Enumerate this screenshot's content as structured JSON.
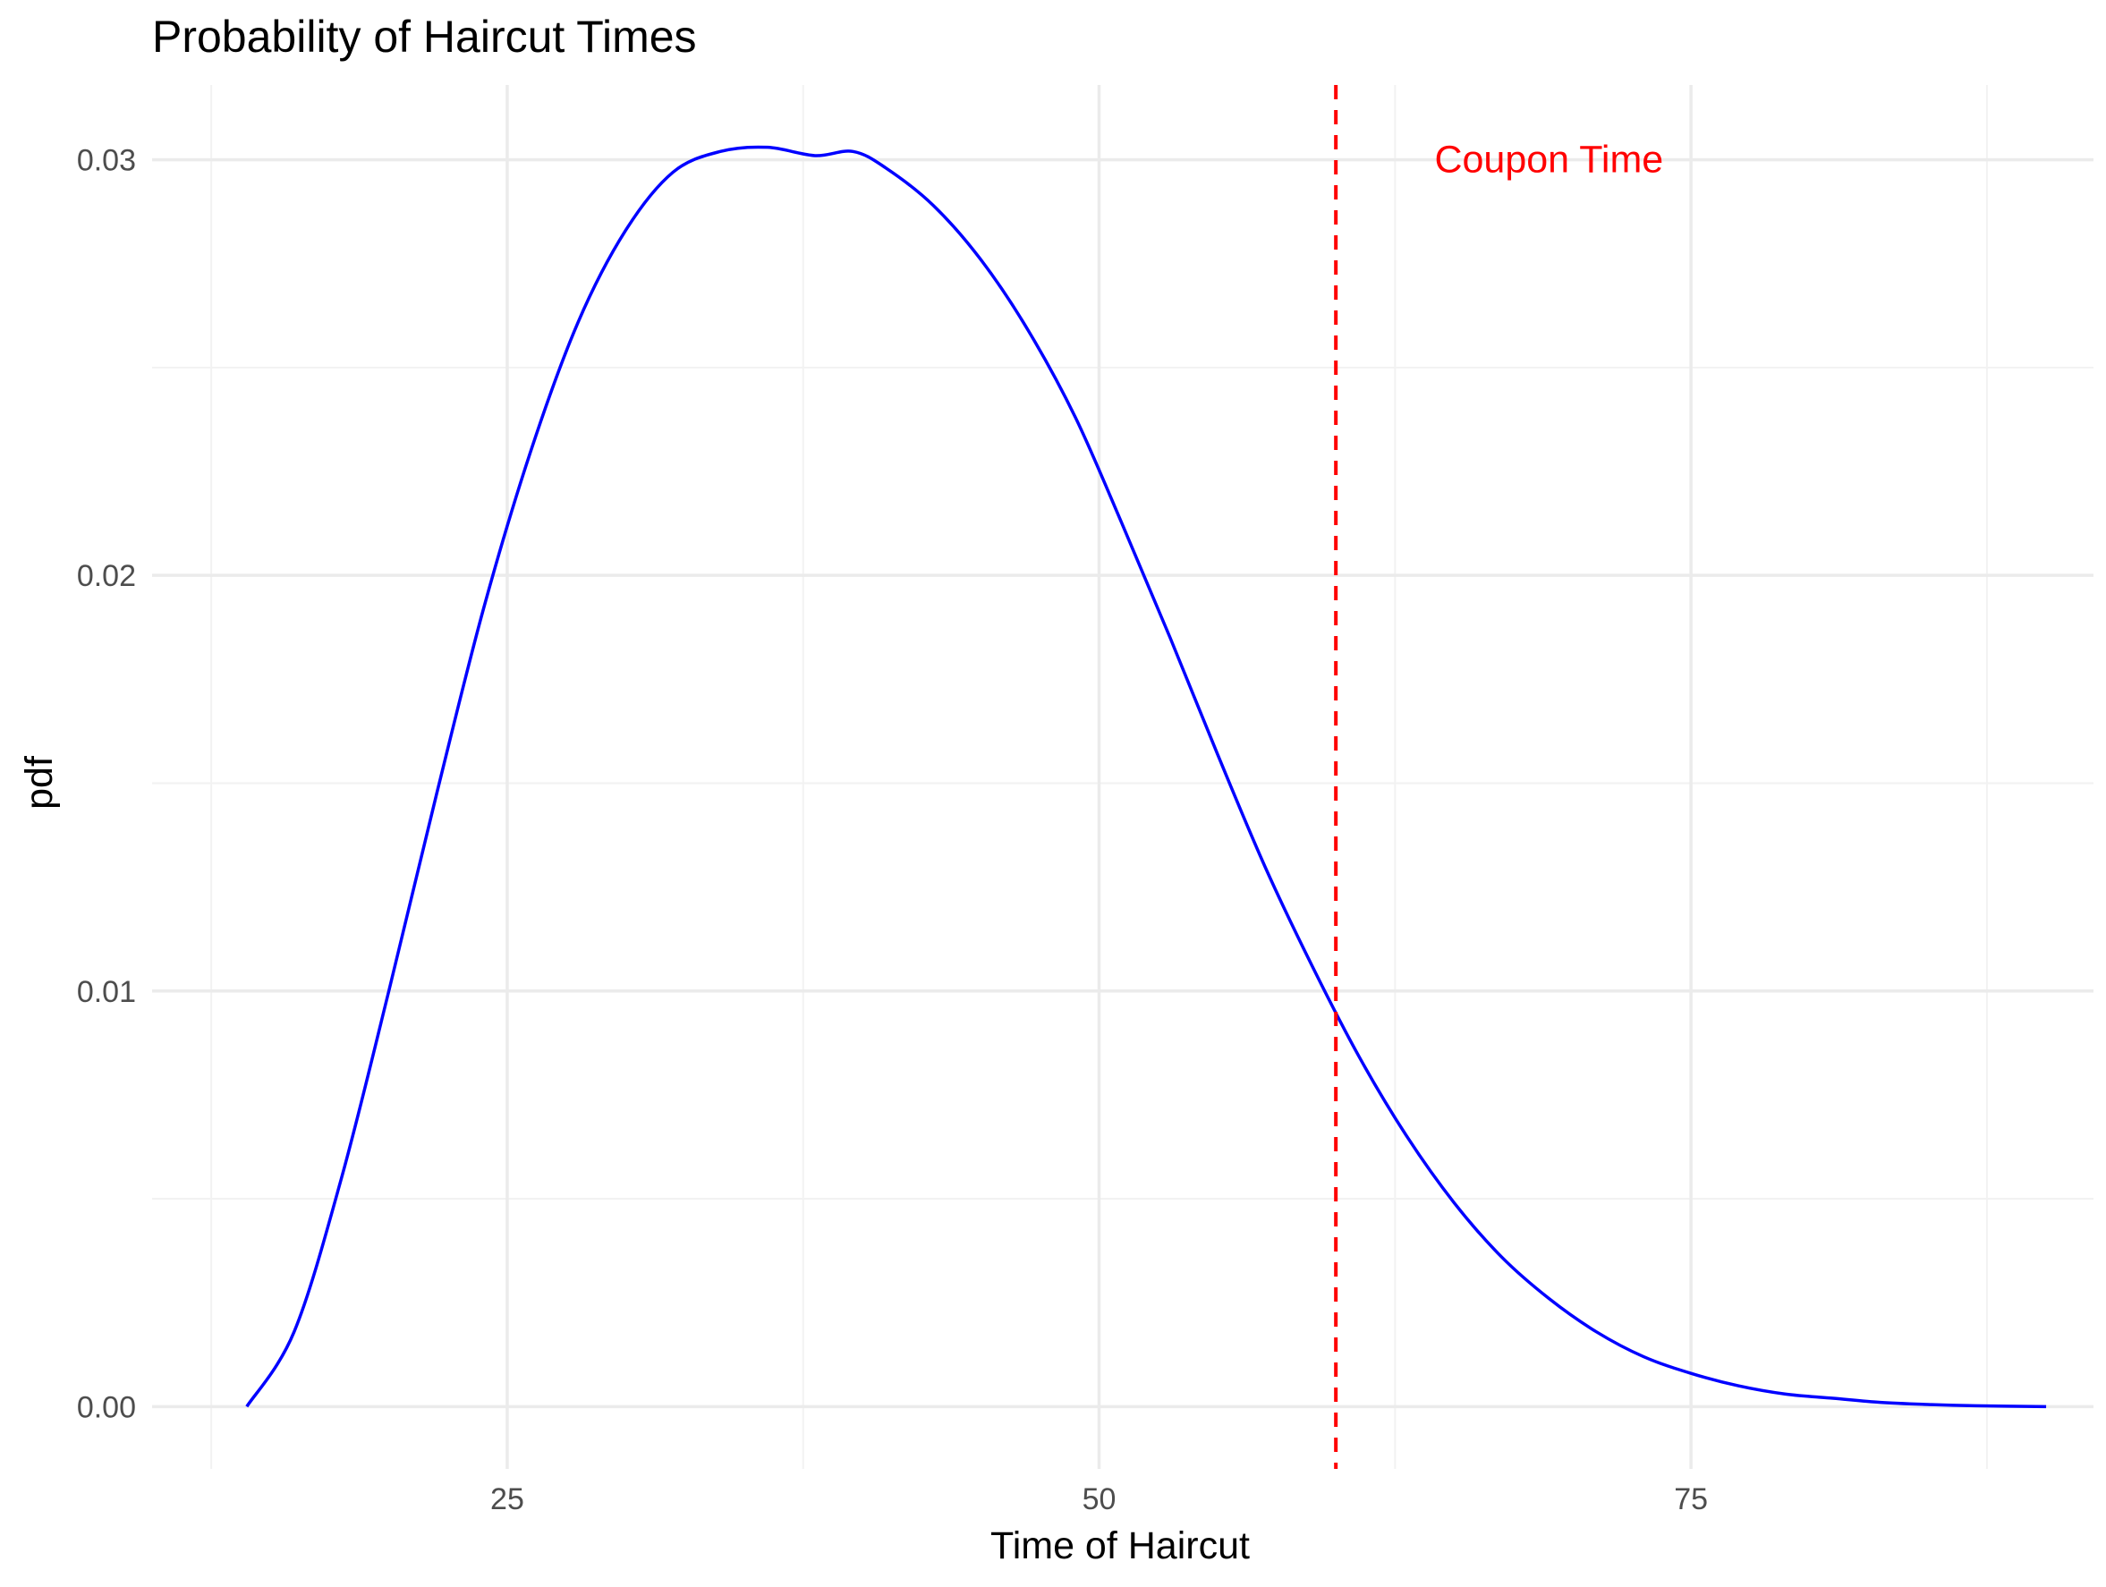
{
  "chart_data": {
    "type": "line",
    "title": "Probability of Haircut Times",
    "xlabel": "Time of Haircut",
    "ylabel": "pdf",
    "xlim": [
      10,
      92
    ],
    "ylim": [
      -0.0015,
      0.0318
    ],
    "x_ticks": [
      25,
      50,
      75
    ],
    "x_tick_labels": [
      "25",
      "50",
      "75"
    ],
    "y_ticks": [
      0.0,
      0.01,
      0.02,
      0.03
    ],
    "y_tick_labels": [
      "0.00",
      "0.01",
      "0.02",
      "0.03"
    ],
    "grid": true,
    "series": [
      {
        "color": "#0000ff",
        "x": [
          14,
          16,
          18,
          20,
          22,
          24,
          26,
          28,
          30,
          32,
          34,
          36,
          38,
          39.6,
          41,
          43,
          45,
          47,
          49,
          51,
          53,
          55,
          57,
          59,
          61,
          63,
          65,
          67,
          69,
          71,
          73,
          75,
          77,
          79,
          81,
          83,
          85,
          87,
          90
        ],
        "y": [
          0.0,
          0.0018,
          0.0055,
          0.01,
          0.0147,
          0.0192,
          0.023,
          0.0261,
          0.0283,
          0.0297,
          0.0302,
          0.0303,
          0.0301,
          0.0302,
          0.0298,
          0.0289,
          0.0276,
          0.0259,
          0.0238,
          0.0212,
          0.0185,
          0.0157,
          0.013,
          0.0106,
          0.0084,
          0.0065,
          0.0049,
          0.0036,
          0.0026,
          0.0018,
          0.0012,
          0.0008,
          0.0005,
          0.0003,
          0.0002,
          0.0001,
          5e-05,
          2e-05,
          0.0
        ]
      }
    ],
    "annotations": [
      {
        "type": "vline",
        "x": 60,
        "color": "#ff0000",
        "style": "dashed"
      },
      {
        "type": "text",
        "x": 69,
        "y": 0.03,
        "text": "Coupon Time",
        "color": "#ff0000"
      }
    ]
  }
}
